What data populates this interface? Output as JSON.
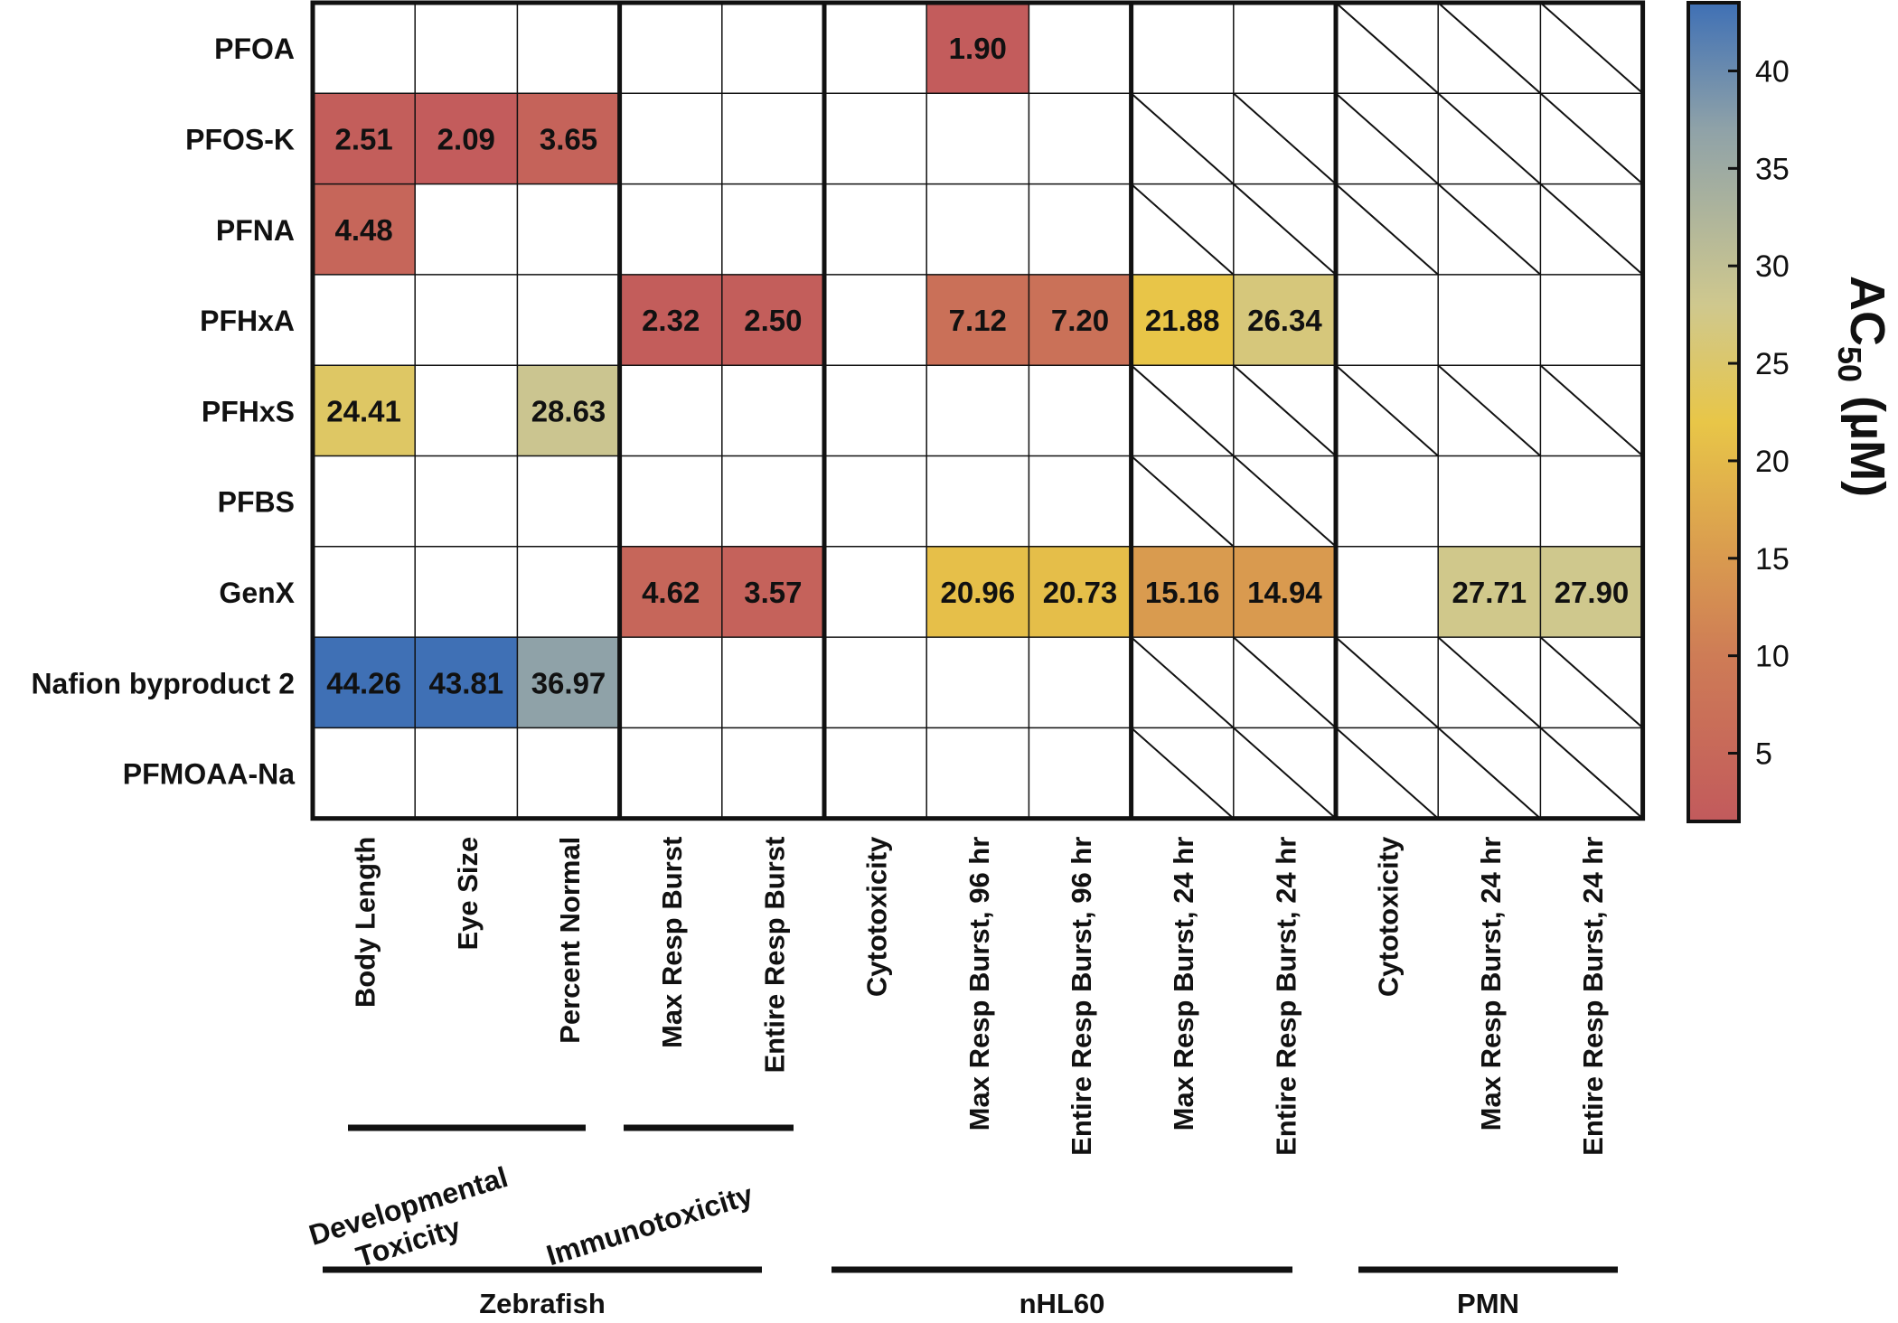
{
  "chart_data": {
    "type": "heatmap",
    "title": "",
    "rows": [
      "PFOA",
      "PFOS-K",
      "PFNA",
      "PFHxA",
      "PFHxS",
      "PFBS",
      "GenX",
      "Nafion byproduct 2",
      "PFMOAA-Na"
    ],
    "columns": [
      "Body Length",
      "Eye Size",
      "Percent Normal",
      "Max Resp Burst",
      "Entire Resp Burst",
      "Cytotoxicity",
      "Max Resp Burst, 96 hr",
      "Entire Resp Burst, 96 hr",
      "Max Resp Burst, 24 hr",
      "Entire Resp Burst, 24 hr",
      "Cytotoxicity",
      "Max Resp Burst, 24 hr",
      "Entire Resp Burst, 24 hr"
    ],
    "values": [
      [
        "",
        "",
        "",
        "",
        "",
        "",
        "1.90",
        "",
        "",
        "",
        "NA",
        "NA",
        "NA"
      ],
      [
        "2.51",
        "2.09",
        "3.65",
        "",
        "",
        "",
        "",
        "",
        "NA",
        "NA",
        "NA",
        "NA",
        "NA"
      ],
      [
        "4.48",
        "",
        "",
        "",
        "",
        "",
        "",
        "",
        "NA",
        "NA",
        "NA",
        "NA",
        "NA"
      ],
      [
        "",
        "",
        "",
        "2.32",
        "2.50",
        "",
        "7.12",
        "7.20",
        "21.88",
        "26.34",
        "",
        "",
        ""
      ],
      [
        "24.41",
        "",
        "28.63",
        "",
        "",
        "",
        "",
        "",
        "NA",
        "NA",
        "NA",
        "NA",
        "NA"
      ],
      [
        "",
        "",
        "",
        "",
        "",
        "",
        "",
        "",
        "NA",
        "NA",
        "",
        "",
        ""
      ],
      [
        "",
        "",
        "",
        "4.62",
        "3.57",
        "",
        "20.96",
        "20.73",
        "15.16",
        "14.94",
        "",
        "27.71",
        "27.90"
      ],
      [
        "44.26",
        "43.81",
        "36.97",
        "",
        "",
        "",
        "",
        "",
        "NA",
        "NA",
        "NA",
        "NA",
        "NA"
      ],
      [
        "",
        "",
        "",
        "",
        "",
        "",
        "",
        "",
        "NA",
        "NA",
        "NA",
        "NA",
        "NA"
      ]
    ],
    "subgroups": [
      {
        "label_lines": [
          "Developmental",
          "Toxicity"
        ],
        "columns": [
          0,
          2
        ]
      },
      {
        "label_lines": [
          "Immunotoxicity"
        ],
        "columns": [
          3,
          4
        ]
      }
    ],
    "groups": [
      {
        "label": "Zebrafish",
        "columns": [
          0,
          4
        ]
      },
      {
        "label": "nHL60",
        "columns": [
          5,
          9
        ]
      },
      {
        "label": "PMN",
        "columns": [
          10,
          12
        ]
      }
    ],
    "colorbar": {
      "label_main": "AC",
      "label_sub": "50",
      "label_unit": " (µM)",
      "range": [
        1.5,
        43.5
      ],
      "ticks": [
        5,
        10,
        15,
        20,
        25,
        30,
        35,
        40
      ],
      "stops": [
        {
          "value": 1.5,
          "color": "#c25a5c"
        },
        {
          "value": 10,
          "color": "#ce7c56"
        },
        {
          "value": 15,
          "color": "#d99a4f"
        },
        {
          "value": 22,
          "color": "#e8c648"
        },
        {
          "value": 28,
          "color": "#cfc88e"
        },
        {
          "value": 37,
          "color": "#8fa2a8"
        },
        {
          "value": 43.5,
          "color": "#3f70b5"
        }
      ]
    }
  }
}
